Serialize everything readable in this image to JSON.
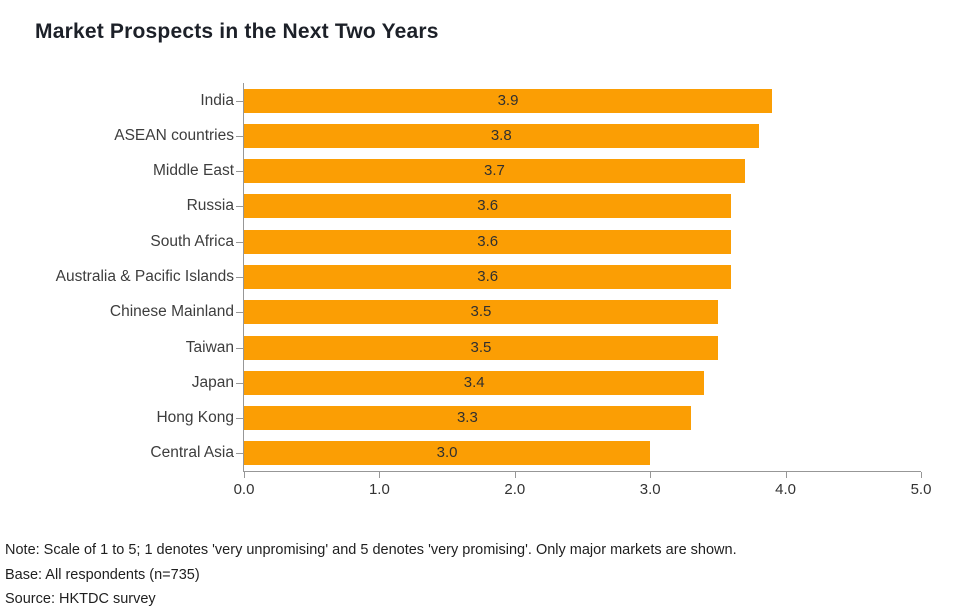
{
  "title": "Market Prospects in the Next Two Years",
  "chart_data": {
    "type": "bar",
    "orientation": "horizontal",
    "title": "Market Prospects in the Next Two Years",
    "categories": [
      "India",
      "ASEAN countries",
      "Middle East",
      "Russia",
      "South Africa",
      "Australia & Pacific Islands",
      "Chinese Mainland",
      "Taiwan",
      "Japan",
      "Hong Kong",
      "Central Asia"
    ],
    "values": [
      3.9,
      3.8,
      3.7,
      3.6,
      3.6,
      3.6,
      3.5,
      3.5,
      3.4,
      3.3,
      3.0
    ],
    "value_labels": [
      "3.9",
      "3.8",
      "3.7",
      "3.6",
      "3.6",
      "3.6",
      "3.5",
      "3.5",
      "3.4",
      "3.3",
      "3.0"
    ],
    "xlim": [
      0,
      5
    ],
    "xticks": [
      0,
      1,
      2,
      3,
      4,
      5
    ],
    "xtick_labels": [
      "0.0",
      "1.0",
      "2.0",
      "3.0",
      "4.0",
      "5.0"
    ],
    "xlabel": "",
    "ylabel": "",
    "grid": false,
    "legend": false,
    "value_label_position": "center",
    "bar_color": "#FB9E04",
    "axis_color": "#979797"
  },
  "notes": {
    "note": "Note: Scale of 1 to 5; 1 denotes 'very unpromising' and 5 denotes 'very promising'. Only major markets are shown.",
    "base": "Base: All respondents (n=735)",
    "source": "Source: HKTDC survey"
  }
}
